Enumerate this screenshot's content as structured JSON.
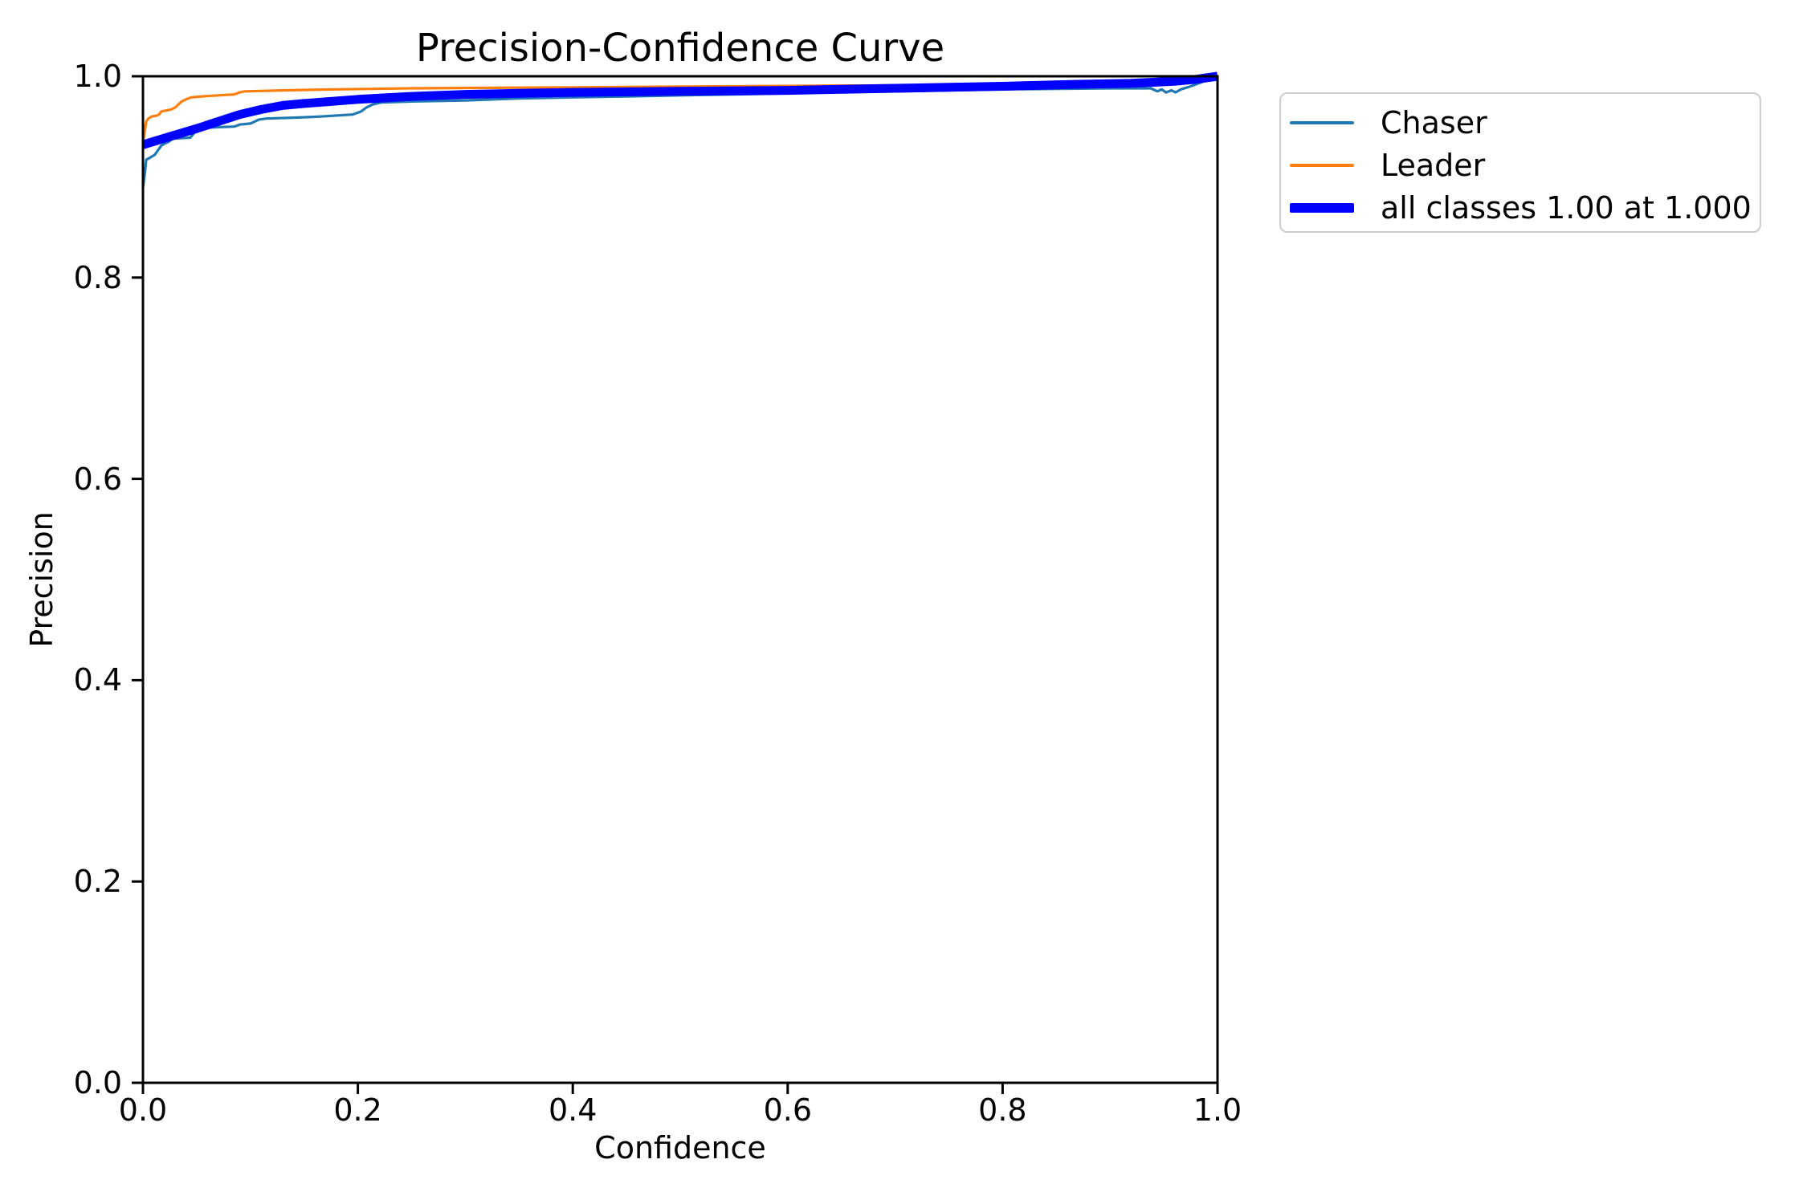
{
  "title": "Precision-Confidence Curve",
  "axes": {
    "xlabel": "Confidence",
    "ylabel": "Precision"
  },
  "legend": {
    "border_color": "#cccccc",
    "items": [
      {
        "label": "Chaser",
        "color": "#1f77b4",
        "line_weight": "thin"
      },
      {
        "label": "Leader",
        "color": "#ff7f0e",
        "line_weight": "thin"
      },
      {
        "label": "all classes 1.00 at 1.000",
        "color": "#0000ff",
        "line_weight": "thick"
      }
    ]
  },
  "chart_data": {
    "type": "line",
    "title": "Precision-Confidence Curve",
    "xlabel": "Confidence",
    "ylabel": "Precision",
    "xlim": [
      0.0,
      1.0
    ],
    "ylim": [
      0.0,
      1.0
    ],
    "grid": false,
    "legend_position": "outside upper right",
    "x_ticks": [
      0.0,
      0.2,
      0.4,
      0.6,
      0.8,
      1.0
    ],
    "y_ticks": [
      0.0,
      0.2,
      0.4,
      0.6,
      0.8,
      1.0
    ],
    "x_tick_labels": [
      "0.0",
      "0.2",
      "0.4",
      "0.6",
      "0.8",
      "1.0"
    ],
    "y_tick_labels": [
      "0.0",
      "0.2",
      "0.4",
      "0.6",
      "0.8",
      "1.0"
    ],
    "series": [
      {
        "name": "Chaser",
        "color": "#1f77b4",
        "width": 3.2,
        "points": [
          [
            0.0,
            0.889
          ],
          [
            0.001,
            0.897
          ],
          [
            0.002,
            0.906
          ],
          [
            0.003,
            0.917
          ],
          [
            0.008,
            0.92
          ],
          [
            0.011,
            0.922
          ],
          [
            0.013,
            0.925
          ],
          [
            0.015,
            0.928
          ],
          [
            0.017,
            0.931
          ],
          [
            0.02,
            0.933
          ],
          [
            0.024,
            0.935
          ],
          [
            0.028,
            0.938
          ],
          [
            0.044,
            0.939
          ],
          [
            0.048,
            0.944
          ],
          [
            0.052,
            0.946
          ],
          [
            0.056,
            0.948
          ],
          [
            0.06,
            0.949
          ],
          [
            0.085,
            0.95
          ],
          [
            0.09,
            0.952
          ],
          [
            0.1,
            0.953
          ],
          [
            0.104,
            0.955
          ],
          [
            0.108,
            0.957
          ],
          [
            0.115,
            0.958
          ],
          [
            0.145,
            0.959
          ],
          [
            0.165,
            0.96
          ],
          [
            0.195,
            0.962
          ],
          [
            0.203,
            0.965
          ],
          [
            0.208,
            0.969
          ],
          [
            0.214,
            0.972
          ],
          [
            0.222,
            0.974
          ],
          [
            0.25,
            0.975
          ],
          [
            0.3,
            0.976
          ],
          [
            0.35,
            0.978
          ],
          [
            0.4,
            0.979
          ],
          [
            0.45,
            0.98
          ],
          [
            0.5,
            0.981
          ],
          [
            0.55,
            0.982
          ],
          [
            0.6,
            0.983
          ],
          [
            0.615,
            0.984
          ],
          [
            0.7,
            0.985
          ],
          [
            0.8,
            0.987
          ],
          [
            0.9,
            0.988
          ],
          [
            0.938,
            0.988
          ],
          [
            0.944,
            0.985
          ],
          [
            0.948,
            0.987
          ],
          [
            0.952,
            0.984
          ],
          [
            0.957,
            0.986
          ],
          [
            0.961,
            0.984
          ],
          [
            0.966,
            0.987
          ],
          [
            0.975,
            0.99
          ],
          [
            0.985,
            0.994
          ],
          [
            1.0,
            1.0
          ]
        ]
      },
      {
        "name": "Leader",
        "color": "#ff7f0e",
        "width": 3.2,
        "points": [
          [
            0.0,
            0.934
          ],
          [
            0.002,
            0.948
          ],
          [
            0.003,
            0.955
          ],
          [
            0.005,
            0.958
          ],
          [
            0.008,
            0.96
          ],
          [
            0.013,
            0.961
          ],
          [
            0.015,
            0.962
          ],
          [
            0.017,
            0.965
          ],
          [
            0.022,
            0.966
          ],
          [
            0.026,
            0.967
          ],
          [
            0.03,
            0.969
          ],
          [
            0.033,
            0.972
          ],
          [
            0.036,
            0.975
          ],
          [
            0.04,
            0.977
          ],
          [
            0.045,
            0.979
          ],
          [
            0.055,
            0.98
          ],
          [
            0.07,
            0.981
          ],
          [
            0.085,
            0.982
          ],
          [
            0.09,
            0.984
          ],
          [
            0.095,
            0.985
          ],
          [
            0.13,
            0.986
          ],
          [
            0.18,
            0.987
          ],
          [
            0.25,
            0.988
          ],
          [
            0.4,
            0.989
          ],
          [
            0.55,
            0.99
          ],
          [
            0.7,
            0.991
          ],
          [
            0.8,
            0.992
          ],
          [
            0.88,
            0.993
          ],
          [
            0.94,
            0.995
          ],
          [
            0.975,
            0.997
          ],
          [
            1.0,
            1.0
          ]
        ]
      },
      {
        "name": "all classes 1.00 at 1.000",
        "color": "#0000ff",
        "width": 11,
        "points": [
          [
            0.0,
            0.932
          ],
          [
            0.025,
            0.94
          ],
          [
            0.05,
            0.948
          ],
          [
            0.07,
            0.955
          ],
          [
            0.09,
            0.962
          ],
          [
            0.11,
            0.967
          ],
          [
            0.13,
            0.971
          ],
          [
            0.15,
            0.973
          ],
          [
            0.175,
            0.975
          ],
          [
            0.2,
            0.977
          ],
          [
            0.25,
            0.98
          ],
          [
            0.3,
            0.982
          ],
          [
            0.35,
            0.983
          ],
          [
            0.4,
            0.984
          ],
          [
            0.5,
            0.985
          ],
          [
            0.6,
            0.986
          ],
          [
            0.7,
            0.988
          ],
          [
            0.8,
            0.99
          ],
          [
            0.87,
            0.992
          ],
          [
            0.92,
            0.993
          ],
          [
            0.96,
            0.995
          ],
          [
            0.98,
            0.997
          ],
          [
            1.0,
            1.0
          ]
        ]
      }
    ]
  }
}
